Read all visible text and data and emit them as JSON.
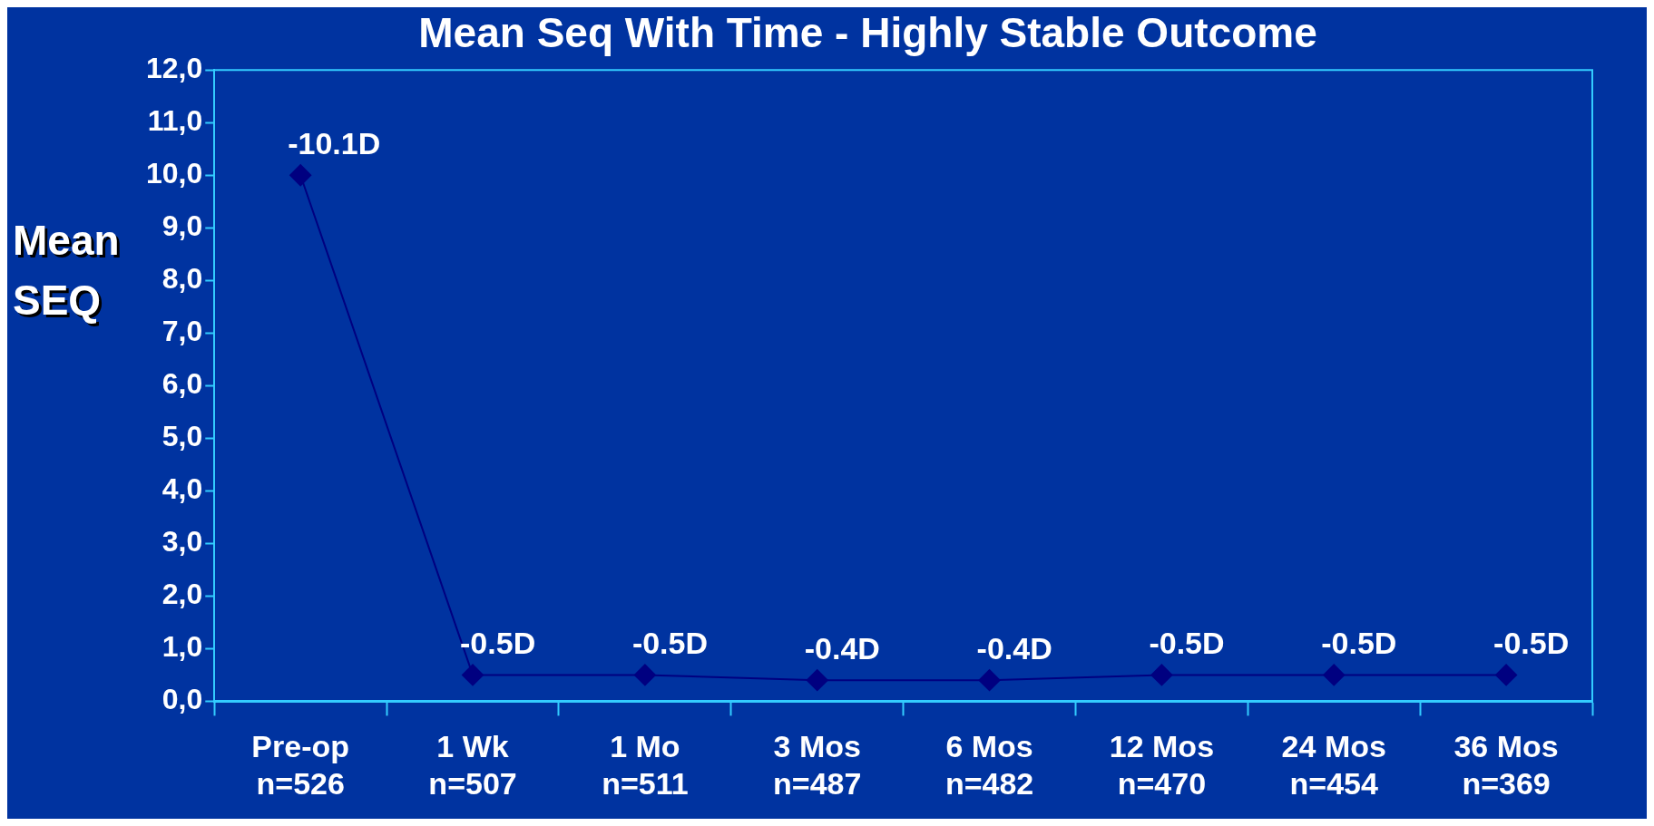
{
  "chart_data": {
    "type": "line",
    "title": "Mean Seq With Time - Highly Stable Outcome",
    "ylabel": "Mean SEQ",
    "categories": [
      "Pre-op\nn=526",
      "1 Wk\nn=507",
      "1 Mo\nn=511",
      "3 Mos\nn=487",
      "6 Mos\nn=482",
      "12 Mos\nn=470",
      "24 Mos\nn=454",
      "36 Mos\nn=369"
    ],
    "series": [
      {
        "color": "#000080",
        "values": [
          10.0,
          0.5,
          0.5,
          0.4,
          0.4,
          0.5,
          0.5,
          0.5
        ]
      }
    ],
    "annotations": [
      {
        "text": "-10.1D",
        "x": "Pre-op\nn=526",
        "y": 10.0
      },
      {
        "text": "-0.5D",
        "x": "1 Wk\nn=507",
        "y": 0.5
      },
      {
        "text": "-0.5D",
        "x": "1 Mo\nn=511",
        "y": 0.5
      },
      {
        "text": "-0.4D",
        "x": "3 Mos\nn=487",
        "y": 0.4
      },
      {
        "text": "-0.4D",
        "x": "6 Mos\nn=482",
        "y": 0.4
      },
      {
        "text": "-0.5D",
        "x": "12 Mos\nn=470",
        "y": 0.5
      },
      {
        "text": "-0.5D",
        "x": "24 Mos\nn=454",
        "y": 0.5
      },
      {
        "text": "-0.5D",
        "x": "36 Mos\nn=369",
        "y": 0.5
      }
    ],
    "ylim": [
      0,
      12
    ],
    "yticks": [
      {
        "value": 0,
        "label": "0,0"
      },
      {
        "value": 1,
        "label": "1,0"
      },
      {
        "value": 2,
        "label": "2,0"
      },
      {
        "value": 3,
        "label": "3,0"
      },
      {
        "value": 4,
        "label": "4,0"
      },
      {
        "value": 5,
        "label": "5,0"
      },
      {
        "value": 6,
        "label": "6,0"
      },
      {
        "value": 7,
        "label": "7,0"
      },
      {
        "value": 8,
        "label": "8,0"
      },
      {
        "value": 9,
        "label": "9,0"
      },
      {
        "value": 10,
        "label": "10,0"
      },
      {
        "value": 11,
        "label": "11,0"
      },
      {
        "value": 12,
        "label": "12,0"
      }
    ],
    "grid": false,
    "legend": false,
    "marker": "diamond",
    "line_style": "solid"
  }
}
